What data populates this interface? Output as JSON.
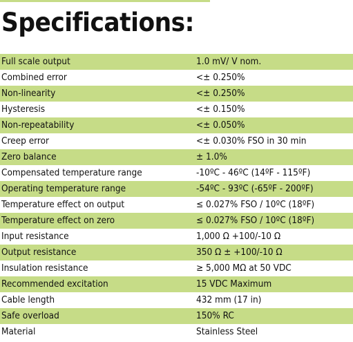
{
  "title": "Specifications:",
  "colors": {
    "accent": "#c6dc87",
    "text": "#111111",
    "background": "#ffffff"
  },
  "rows": [
    {
      "label": "Full scale output",
      "value": "1.0 mV/ V nom."
    },
    {
      "label": "Combined error",
      "value": "<± 0.250%"
    },
    {
      "label": "Non-linearity",
      "value": "<± 0.250%"
    },
    {
      "label": "Hysteresis",
      "value": "<± 0.150%"
    },
    {
      "label": "Non-repeatability",
      "value": "<± 0.050%"
    },
    {
      "label": "Creep error",
      "value": "<± 0.030% FSO in 30 min"
    },
    {
      "label": "Zero balance",
      "value": "± 1.0%"
    },
    {
      "label": "Compensated temperature range",
      "value": "-10ºC - 46ºC (14ºF - 115ºF)"
    },
    {
      "label": "Operating temperature range",
      "value": "-54ºC - 93ºC (-65ºF - 200ºF)"
    },
    {
      "label": "Temperature effect on output",
      "value": "≤ 0.027% FSO / 10ºC (18ºF)"
    },
    {
      "label": "Temperature effect on zero",
      "value": "≤ 0.027% FSO / 10ºC (18ºF)"
    },
    {
      "label": "Input resistance",
      "value": "1,000 Ω +100/-10 Ω"
    },
    {
      "label": "Output resistance",
      "value": "350 Ω ± +100/-10 Ω"
    },
    {
      "label": "Insulation resistance",
      "value": "≥ 5,000 MΩ at 50 VDC"
    },
    {
      "label": "Recommended excitation",
      "value": "15 VDC Maximum"
    },
    {
      "label": "Cable length",
      "value": "432 mm (17 in)"
    },
    {
      "label": "Safe overload",
      "value": "150%  RC"
    },
    {
      "label": "Material",
      "value": "Stainless Steel"
    }
  ]
}
